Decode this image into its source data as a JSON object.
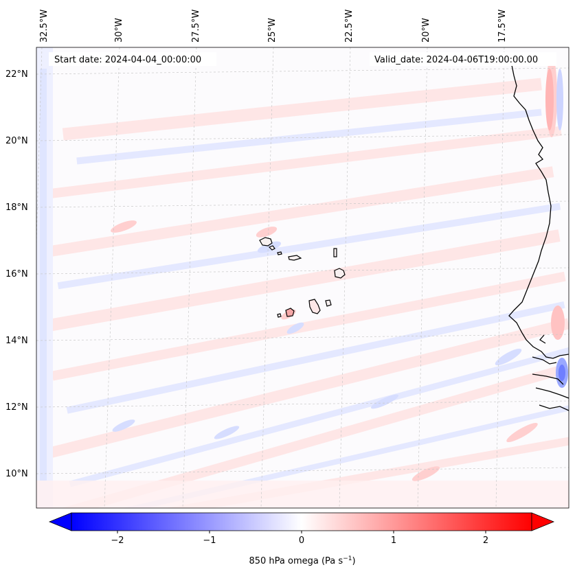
{
  "map": {
    "start_date_label": "Start date: 2024-04-04_00:00:00",
    "valid_date_label": "Valid_date: 2024-04-06T19:00:00.00",
    "lon_labels": [
      "32.5°W",
      "30°W",
      "27.5°W",
      "25°W",
      "22.5°W",
      "20°W",
      "17.5°W"
    ],
    "lat_labels": [
      "22°N",
      "20°N",
      "18°N",
      "16°N",
      "14°N",
      "12°N",
      "10°N"
    ],
    "variable": "850 hPa omega",
    "units": "Pa s",
    "units_exponent": "−1"
  },
  "colorbar": {
    "tick_labels": [
      "−2",
      "−1",
      "0",
      "1",
      "2"
    ],
    "tick_values": [
      -2,
      -1,
      0,
      1,
      2
    ],
    "range": [
      -2.5,
      2.5
    ],
    "low_color": "#0000ff",
    "mid_color": "#ffffff",
    "high_color": "#ff0000",
    "extend": "both"
  },
  "colors": {
    "rising_tint": "#dde2ff",
    "sinking_tint": "#ffe3e3",
    "coastline": "#000000"
  }
}
